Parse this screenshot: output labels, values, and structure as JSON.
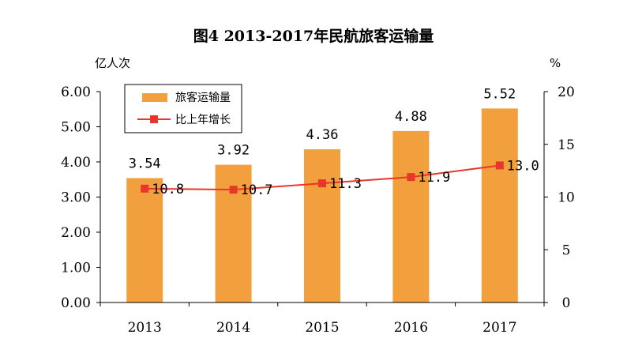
{
  "chart_data": {
    "type": "bar+line",
    "title": "图4  2013-2017年民航旅客运输量",
    "categories": [
      "2013",
      "2014",
      "2015",
      "2016",
      "2017"
    ],
    "series": [
      {
        "name": "旅客运输量",
        "kind": "bar",
        "axis": "left",
        "color": "#F2A03D",
        "values": [
          3.54,
          3.92,
          4.36,
          4.88,
          5.52
        ],
        "labels": [
          "3.54",
          "3.92",
          "4.36",
          "4.88",
          "5.52"
        ]
      },
      {
        "name": "比上年增长",
        "kind": "line",
        "axis": "right",
        "color": "#E8372A",
        "values": [
          10.8,
          10.7,
          11.3,
          11.9,
          13.0
        ],
        "labels": [
          "10.8",
          "10.7",
          "11.3",
          "11.9",
          "13.0"
        ]
      }
    ],
    "left_axis": {
      "unit": "亿人次",
      "ylim": [
        0,
        6
      ],
      "ticks": [
        0,
        1,
        2,
        3,
        4,
        5,
        6
      ],
      "tick_labels": [
        "0.00",
        "1.00",
        "2.00",
        "3.00",
        "4.00",
        "5.00",
        "6.00"
      ]
    },
    "right_axis": {
      "unit": "%",
      "ylim": [
        0,
        20
      ],
      "ticks": [
        0,
        5,
        10,
        15,
        20
      ],
      "tick_labels": [
        "0",
        "5",
        "10",
        "15",
        "20"
      ]
    },
    "legend": {
      "placement": "top-left",
      "entries": [
        "旅客运输量",
        "比上年增长"
      ]
    },
    "grid": false
  }
}
